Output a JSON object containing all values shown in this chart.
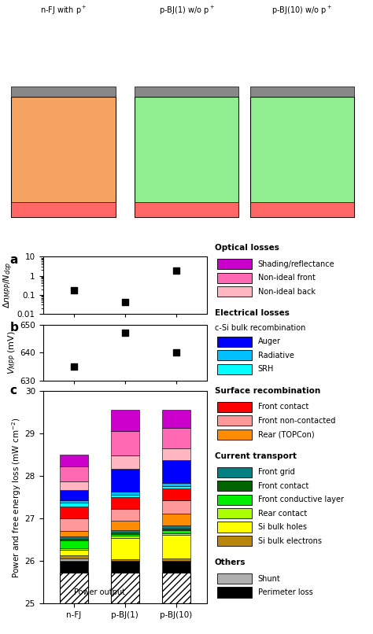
{
  "categories": [
    "n-FJ",
    "p-BJ(1)",
    "p-BJ(10)"
  ],
  "panel_a": {
    "values": [
      0.17,
      0.04,
      1.8
    ],
    "ylim_log": [
      0.01,
      10
    ],
    "yticks": [
      0.01,
      0.1,
      1,
      10
    ]
  },
  "panel_b": {
    "values": [
      635,
      647,
      640
    ],
    "ylim": [
      630,
      650
    ],
    "yticks": [
      630,
      640,
      650
    ]
  },
  "panel_c": {
    "ylim": [
      25,
      30
    ],
    "yticks": [
      25,
      26,
      27,
      28,
      29,
      30
    ],
    "power_output": [
      25.72,
      25.72,
      25.72
    ],
    "layers_order": [
      "Perimeter loss",
      "Shunt",
      "Si bulk electrons",
      "Si bulk holes",
      "Rear contact",
      "Front conductive layer",
      "Front contact CT",
      "Front grid",
      "Rear (TOPCon)",
      "Front non-contacted",
      "Front contact SR",
      "SRH",
      "Radiative",
      "Auger",
      "Non-ideal back",
      "Non-ideal front",
      "Shading/reflectance"
    ],
    "layers": {
      "Perimeter loss": {
        "color": "#000000",
        "values": [
          0.28,
          0.28,
          0.28
        ]
      },
      "Shunt": {
        "color": "#b0b0b0",
        "values": [
          0.07,
          0.0,
          0.0
        ]
      },
      "Si bulk electrons": {
        "color": "#b8860b",
        "values": [
          0.06,
          0.05,
          0.07
        ]
      },
      "Si bulk holes": {
        "color": "#ffff00",
        "values": [
          0.13,
          0.5,
          0.55
        ]
      },
      "Rear contact": {
        "color": "#aaff00",
        "values": [
          0.04,
          0.04,
          0.04
        ]
      },
      "Front conductive layer": {
        "color": "#00ee00",
        "values": [
          0.18,
          0.04,
          0.06
        ]
      },
      "Front contact CT": {
        "color": "#006400",
        "values": [
          0.05,
          0.05,
          0.05
        ]
      },
      "Front grid": {
        "color": "#008080",
        "values": [
          0.05,
          0.05,
          0.06
        ]
      },
      "Rear (TOPCon)": {
        "color": "#ff8c00",
        "values": [
          0.13,
          0.22,
          0.28
        ]
      },
      "Front non-contacted": {
        "color": "#ff9999",
        "values": [
          0.3,
          0.28,
          0.32
        ]
      },
      "Front contact SR": {
        "color": "#ff0000",
        "values": [
          0.28,
          0.28,
          0.28
        ]
      },
      "SRH": {
        "color": "#00ffff",
        "values": [
          0.08,
          0.06,
          0.06
        ]
      },
      "Radiative": {
        "color": "#00bfff",
        "values": [
          0.06,
          0.06,
          0.06
        ]
      },
      "Auger": {
        "color": "#0000ff",
        "values": [
          0.25,
          0.55,
          0.55
        ]
      },
      "Non-ideal back": {
        "color": "#ffb6c1",
        "values": [
          0.2,
          0.3,
          0.28
        ]
      },
      "Non-ideal front": {
        "color": "#ff69b4",
        "values": [
          0.35,
          0.58,
          0.48
        ]
      },
      "Shading/reflectance": {
        "color": "#cc00cc",
        "values": [
          0.28,
          0.5,
          0.42
        ]
      }
    }
  },
  "legend_sections": [
    {
      "title": "Optical losses",
      "subtitle": null,
      "items": [
        {
          "label": "Shading/reflectance",
          "color": "#cc00cc"
        },
        {
          "label": "Non-ideal front",
          "color": "#ff69b4"
        },
        {
          "label": "Non-ideal back",
          "color": "#ffb6c1"
        }
      ]
    },
    {
      "title": "Electrical losses",
      "subtitle": "c-Si bulk recombination",
      "items": [
        {
          "label": "Auger",
          "color": "#0000ff"
        },
        {
          "label": "Radiative",
          "color": "#00bfff"
        },
        {
          "label": "SRH",
          "color": "#00ffff"
        }
      ]
    },
    {
      "title": "Surface recombination",
      "subtitle": null,
      "items": [
        {
          "label": "Front contact",
          "color": "#ff0000"
        },
        {
          "label": "Front non-contacted",
          "color": "#ff9999"
        },
        {
          "label": "Rear (TOPCon)",
          "color": "#ff8c00"
        }
      ]
    },
    {
      "title": "Current transport",
      "subtitle": null,
      "items": [
        {
          "label": "Front grid",
          "color": "#008080"
        },
        {
          "label": "Front contact",
          "color": "#006400"
        },
        {
          "label": "Front conductive layer",
          "color": "#00ee00"
        },
        {
          "label": "Rear contact",
          "color": "#aaff00"
        },
        {
          "label": "Si bulk holes",
          "color": "#ffff00"
        },
        {
          "label": "Si bulk electrons",
          "color": "#b8860b"
        }
      ]
    },
    {
      "title": "Others",
      "subtitle": null,
      "items": [
        {
          "label": "Shunt",
          "color": "#b0b0b0"
        },
        {
          "label": "Perimeter loss",
          "color": "#000000"
        }
      ]
    }
  ]
}
